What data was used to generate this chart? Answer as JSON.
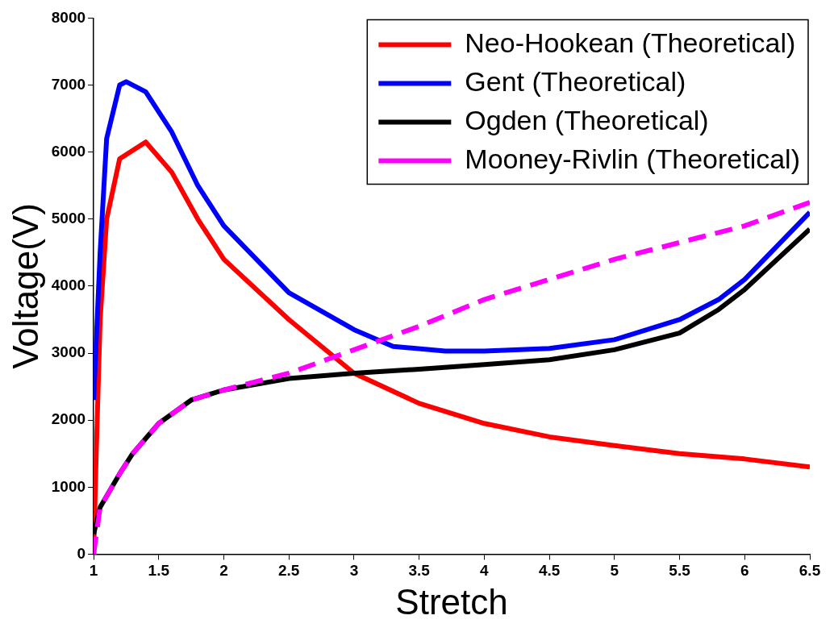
{
  "chart_data": {
    "type": "line",
    "xlabel": "Stretch",
    "ylabel": "Voltage(V)",
    "xlim": [
      1,
      6.5
    ],
    "xticks": [
      1,
      1.5,
      2,
      2.5,
      3,
      3.5,
      4,
      4.5,
      5,
      5.5,
      6,
      6.5
    ],
    "ylim": [
      0,
      8000
    ],
    "yticks": [
      0,
      1000,
      2000,
      3000,
      4000,
      5000,
      6000,
      7000,
      8000
    ],
    "grid": false,
    "legend": "top right",
    "marker": "none",
    "series": [
      {
        "name": "Neo-Hookean (Theoretical)",
        "color": "#ff0000",
        "line_style": "solid",
        "x": [
          1,
          1.02,
          1.05,
          1.1,
          1.2,
          1.4,
          1.6,
          1.8,
          2,
          2.5,
          3,
          3.5,
          4,
          4.5,
          5,
          5.5,
          6,
          6.5
        ],
        "values": [
          0,
          1500,
          3500,
          5000,
          5900,
          6150,
          5700,
          5000,
          4400,
          3500,
          2700,
          2250,
          1950,
          1750,
          1620,
          1500,
          1420,
          1300
        ]
      },
      {
        "name": "Gent (Theoretical)",
        "color": "#0000ff",
        "line_style": "solid",
        "x": [
          1,
          1.05,
          1.1,
          1.2,
          1.25,
          1.4,
          1.6,
          1.8,
          2,
          2.5,
          3,
          3.3,
          3.7,
          4,
          4.5,
          5,
          5.5,
          5.8,
          6,
          6.5
        ],
        "values": [
          2300,
          4500,
          6200,
          7000,
          7050,
          6900,
          6300,
          5500,
          4900,
          3900,
          3350,
          3100,
          3030,
          3030,
          3070,
          3200,
          3500,
          3800,
          4100,
          5100
        ]
      },
      {
        "name": "Ogden (Theoretical)",
        "color": "#000000",
        "line_style": "solid",
        "x": [
          1,
          1.05,
          1.2,
          1.3,
          1.5,
          1.75,
          2,
          2.5,
          3,
          3.5,
          4,
          4.5,
          5,
          5.5,
          5.8,
          6,
          6.5
        ],
        "values": [
          300,
          700,
          1200,
          1500,
          1950,
          2300,
          2450,
          2620,
          2700,
          2760,
          2830,
          2900,
          3050,
          3300,
          3650,
          3950,
          4850
        ]
      },
      {
        "name": "Mooney-Rivlin (Theoretical)",
        "color": "#ff00ff",
        "line_style": "dashed",
        "x": [
          1,
          1.05,
          1.2,
          1.3,
          1.5,
          1.75,
          2,
          2.5,
          3,
          3.5,
          4,
          4.5,
          5,
          5.5,
          6,
          6.5
        ],
        "values": [
          0,
          700,
          1200,
          1500,
          1950,
          2300,
          2450,
          2700,
          3050,
          3400,
          3800,
          4100,
          4400,
          4650,
          4900,
          5250
        ]
      }
    ]
  }
}
